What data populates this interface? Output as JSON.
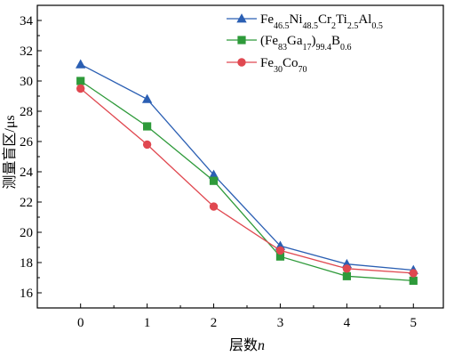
{
  "chart_data": {
    "type": "line",
    "x": [
      0,
      1,
      2,
      3,
      4,
      5
    ],
    "xlim": [
      -0.65,
      5.45
    ],
    "ylim": [
      15,
      35
    ],
    "xticks": [
      0,
      1,
      2,
      3,
      4,
      5
    ],
    "yticks": [
      16,
      18,
      20,
      22,
      24,
      26,
      28,
      30,
      32,
      34
    ],
    "xlabel_main": "层数",
    "xlabel_var": "n",
    "ylabel": "测量盲区/μs",
    "grid": false,
    "legend_position": "top-right",
    "series": [
      {
        "name": "Fe46.5Ni48.5Cr2Ti2.5Al0.5",
        "name_parts": [
          [
            "Fe",
            ""
          ],
          [
            "46.5",
            "sub"
          ],
          [
            "Ni",
            ""
          ],
          [
            "48.5",
            "sub"
          ],
          [
            "Cr",
            ""
          ],
          [
            "2",
            "sub"
          ],
          [
            "Ti",
            ""
          ],
          [
            "2.5",
            "sub"
          ],
          [
            "Al",
            ""
          ],
          [
            "0.5",
            "sub"
          ]
        ],
        "color": "#2b5fb3",
        "marker": "triangle",
        "values": [
          31.1,
          28.8,
          23.8,
          19.1,
          17.9,
          17.5
        ]
      },
      {
        "name": "(Fe83Ga17)99.4B0.6",
        "name_parts": [
          [
            "(Fe",
            ""
          ],
          [
            "83",
            "sub"
          ],
          [
            "Ga",
            ""
          ],
          [
            "17",
            "sub"
          ],
          [
            ")",
            ""
          ],
          [
            "99.4",
            "sub"
          ],
          [
            "B",
            ""
          ],
          [
            "0.6",
            "sub"
          ]
        ],
        "color": "#2e9a3a",
        "marker": "square",
        "values": [
          30.0,
          27.0,
          23.4,
          18.4,
          17.1,
          16.8
        ]
      },
      {
        "name": "Fe30Co70",
        "name_parts": [
          [
            "Fe",
            ""
          ],
          [
            "30",
            "sub"
          ],
          [
            "Co",
            ""
          ],
          [
            "70",
            "sub"
          ]
        ],
        "color": "#e04850",
        "marker": "circle",
        "values": [
          29.5,
          25.8,
          21.7,
          18.8,
          17.6,
          17.3
        ]
      }
    ]
  }
}
